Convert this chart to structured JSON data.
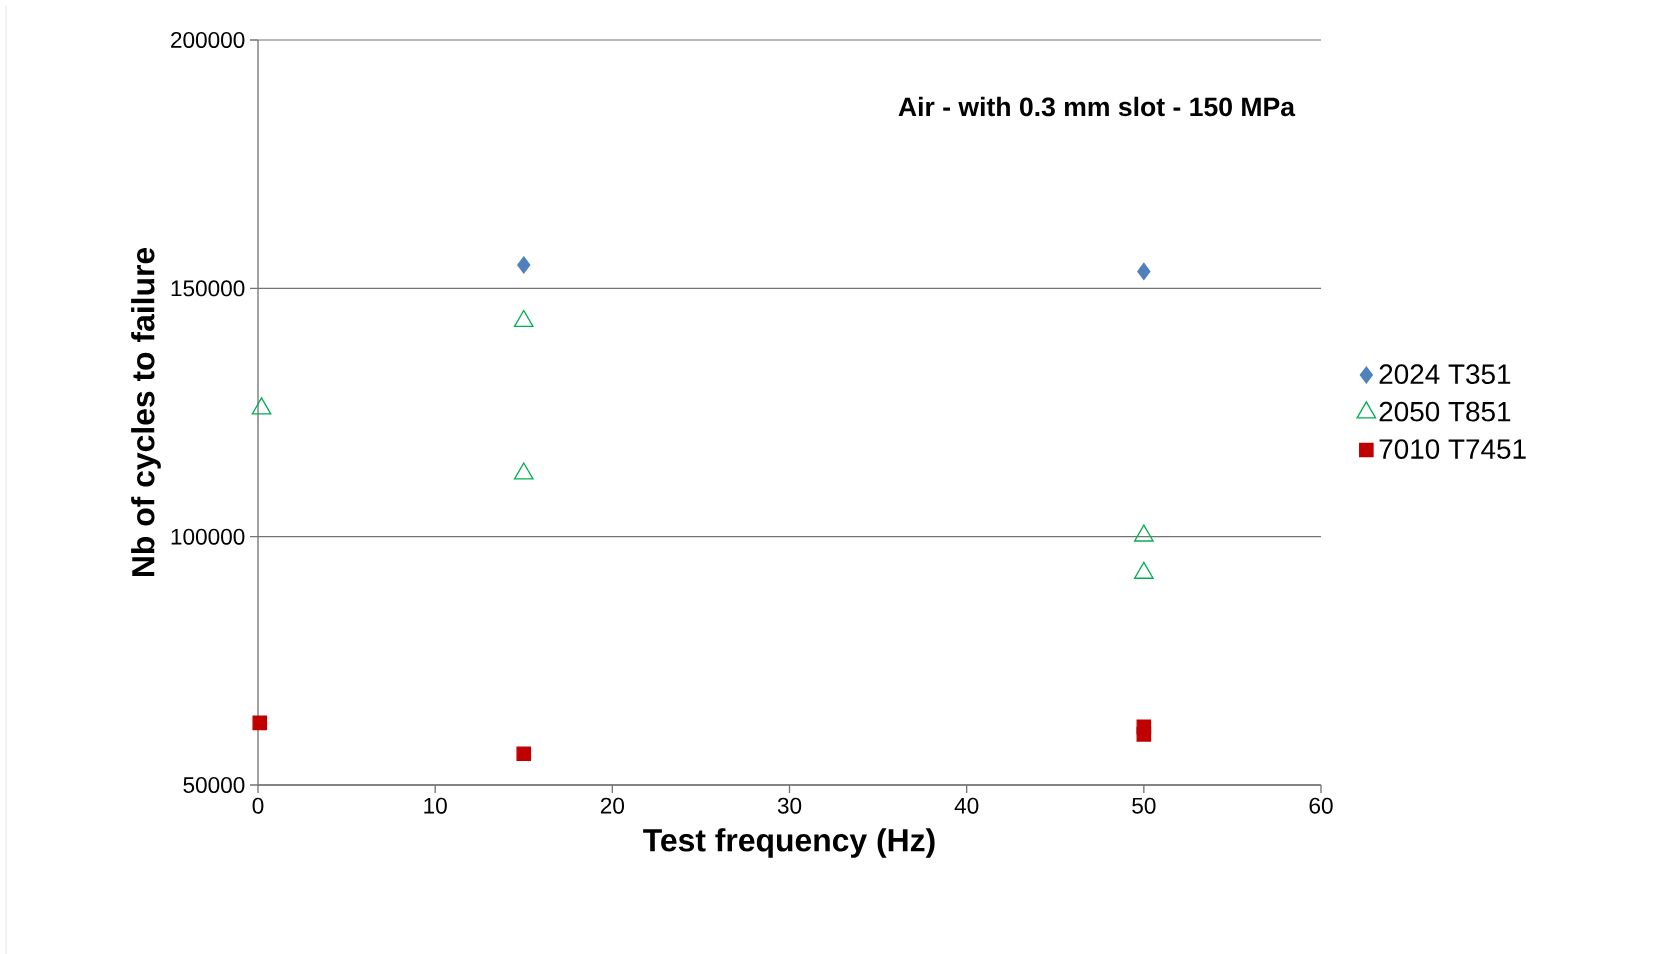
{
  "chart_data": {
    "type": "scatter",
    "title": "Air - with 0.3 mm slot - 150 MPa",
    "xlabel": "Test frequency (Hz)",
    "ylabel": "Nb of cycles to failure",
    "xlim": [
      0,
      60
    ],
    "xticks": [
      0,
      10,
      20,
      30,
      40,
      50,
      60
    ],
    "ylim": [
      50000,
      200000
    ],
    "yticks": [
      50000,
      100000,
      150000,
      200000
    ],
    "grid": "y",
    "legend": "right",
    "series": [
      {
        "name": "2024 T351",
        "color": "#4f81bd",
        "marker": "diamond",
        "x": [
          15,
          50
        ],
        "values": [
          154700,
          153400
        ]
      },
      {
        "name": "2050 T851",
        "color": "#00b050",
        "marker": "triangle",
        "x": [
          0.2,
          15,
          15,
          50,
          50
        ],
        "values": [
          125800,
          143400,
          112700,
          100200,
          92700
        ]
      },
      {
        "name": "7010 T7451",
        "color": "#c00000",
        "marker": "square",
        "x": [
          0.1,
          15,
          50,
          50
        ],
        "values": [
          62500,
          56300,
          61700,
          60200
        ]
      }
    ]
  }
}
